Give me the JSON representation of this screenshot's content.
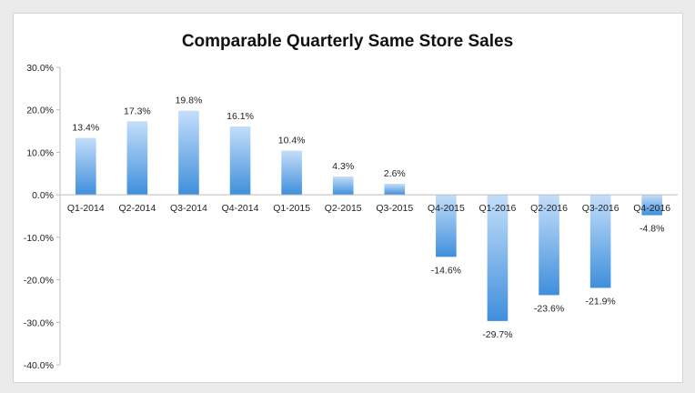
{
  "chart_data": {
    "type": "bar",
    "title": "Comparable Quarterly Same Store Sales",
    "xlabel": "",
    "ylabel": "",
    "categories": [
      "Q1-2014",
      "Q2-2014",
      "Q3-2014",
      "Q4-2014",
      "Q1-2015",
      "Q2-2015",
      "Q3-2015",
      "Q4-2015",
      "Q1-2016",
      "Q2-2016",
      "Q3-2016",
      "Q4-2016"
    ],
    "values": [
      13.4,
      17.3,
      19.8,
      16.1,
      10.4,
      4.3,
      2.6,
      -14.6,
      -29.7,
      -23.6,
      -21.9,
      -4.8
    ],
    "data_labels": [
      "13.4%",
      "17.3%",
      "19.8%",
      "16.1%",
      "10.4%",
      "4.3%",
      "2.6%",
      "-14.6%",
      "-29.7%",
      "-23.6%",
      "-21.9%",
      "-4.8%"
    ],
    "ylim": [
      -40,
      30
    ],
    "y_ticks": [
      30,
      20,
      10,
      0,
      -10,
      -20,
      -30,
      -40
    ],
    "y_tick_labels": [
      "30.0%",
      "20.0%",
      "10.0%",
      "0.0%",
      "-10.0%",
      "-20.0%",
      "-30.0%",
      "-40.0%"
    ],
    "grid": false,
    "legend": "none",
    "colors": {
      "bar_light": "#c4defa",
      "bar_dark": "#3f8fdc",
      "axis": "#bdbdbd"
    }
  }
}
